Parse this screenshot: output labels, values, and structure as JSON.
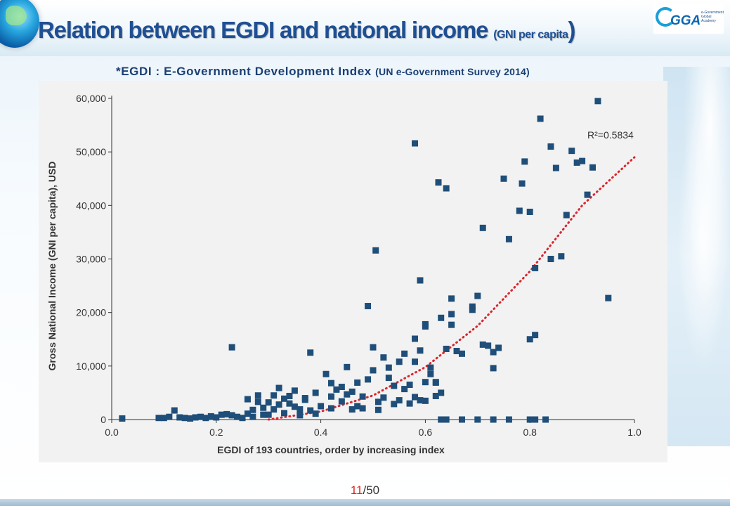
{
  "header": {
    "title_main": "Relation between EGDI and national income ",
    "title_paren_open": "(",
    "title_small": "GNI per capita",
    "title_paren_close": ")",
    "logo_text": "GGA",
    "logo_sub": "e-Government Global Academy"
  },
  "subtitle": {
    "main": "*EGDI : E-Government Development Index ",
    "source": "(UN e-Government Survey 2014)"
  },
  "page": {
    "current": "11",
    "total": "/50"
  },
  "colors": {
    "marker": "#1f4e79",
    "trend": "#d9262e",
    "title": "#1f4f93"
  },
  "chart_data": {
    "type": "scatter",
    "xlabel": "EGDI of 193 countries, order by increasing index",
    "ylabel": "Gross National Income (GNI per capita), USD",
    "xlim": [
      0.0,
      1.0
    ],
    "ylim": [
      0,
      60000
    ],
    "xticks": [
      0.0,
      0.2,
      0.4,
      0.6,
      0.8,
      1.0
    ],
    "xtick_labels": [
      "0.0",
      "0.2",
      "0.4",
      "0.6",
      "0.8",
      "1.0"
    ],
    "yticks": [
      0,
      10000,
      20000,
      30000,
      40000,
      50000,
      60000
    ],
    "ytick_labels": [
      "0",
      "10,000",
      "20,000",
      "30,000",
      "40,000",
      "50,000",
      "60,000"
    ],
    "grid": false,
    "trendline": {
      "type": "polynomial",
      "style": "dotted",
      "label": "R²=0.5834",
      "points": [
        [
          0.3,
          0
        ],
        [
          0.4,
          1500
        ],
        [
          0.5,
          4500
        ],
        [
          0.6,
          9800
        ],
        [
          0.7,
          17500
        ],
        [
          0.8,
          27700
        ],
        [
          0.9,
          40000
        ],
        [
          1.0,
          49000
        ]
      ]
    },
    "points": [
      [
        0.02,
        200
      ],
      [
        0.09,
        300
      ],
      [
        0.1,
        300
      ],
      [
        0.11,
        500
      ],
      [
        0.12,
        1700
      ],
      [
        0.13,
        400
      ],
      [
        0.14,
        300
      ],
      [
        0.15,
        200
      ],
      [
        0.16,
        400
      ],
      [
        0.17,
        500
      ],
      [
        0.18,
        300
      ],
      [
        0.19,
        600
      ],
      [
        0.2,
        400
      ],
      [
        0.21,
        900
      ],
      [
        0.22,
        1000
      ],
      [
        0.23,
        800
      ],
      [
        0.24,
        500
      ],
      [
        0.25,
        300
      ],
      [
        0.26,
        1100
      ],
      [
        0.27,
        1800
      ],
      [
        0.28,
        3300
      ],
      [
        0.29,
        2200
      ],
      [
        0.3,
        900
      ],
      [
        0.31,
        1900
      ],
      [
        0.32,
        2800
      ],
      [
        0.33,
        1200
      ],
      [
        0.34,
        3000
      ],
      [
        0.35,
        2400
      ],
      [
        0.36,
        1900
      ],
      [
        0.37,
        3700
      ],
      [
        0.38,
        1700
      ],
      [
        0.39,
        5000
      ],
      [
        0.4,
        2500
      ],
      [
        0.27,
        500
      ],
      [
        0.29,
        900
      ],
      [
        0.31,
        4500
      ],
      [
        0.33,
        3900
      ],
      [
        0.35,
        5400
      ],
      [
        0.37,
        4000
      ],
      [
        0.39,
        1100
      ],
      [
        0.23,
        13500
      ],
      [
        0.26,
        3800
      ],
      [
        0.28,
        4500
      ],
      [
        0.3,
        3200
      ],
      [
        0.32,
        5900
      ],
      [
        0.34,
        4400
      ],
      [
        0.36,
        800
      ],
      [
        0.38,
        12500
      ],
      [
        0.41,
        8500
      ],
      [
        0.42,
        6800
      ],
      [
        0.43,
        5600
      ],
      [
        0.44,
        3400
      ],
      [
        0.45,
        9800
      ],
      [
        0.46,
        5200
      ],
      [
        0.47,
        2500
      ],
      [
        0.48,
        4300
      ],
      [
        0.49,
        7500
      ],
      [
        0.5,
        13500
      ],
      [
        0.51,
        3300
      ],
      [
        0.52,
        11600
      ],
      [
        0.53,
        9700
      ],
      [
        0.54,
        6300
      ],
      [
        0.55,
        10800
      ],
      [
        0.56,
        12300
      ],
      [
        0.57,
        6500
      ],
      [
        0.58,
        4200
      ],
      [
        0.59,
        12900
      ],
      [
        0.6,
        17800
      ],
      [
        0.61,
        8500
      ],
      [
        0.62,
        6900
      ],
      [
        0.63,
        5000
      ],
      [
        0.64,
        13200
      ],
      [
        0.42,
        4300
      ],
      [
        0.44,
        6100
      ],
      [
        0.46,
        1900
      ],
      [
        0.48,
        2100
      ],
      [
        0.5,
        9200
      ],
      [
        0.52,
        4100
      ],
      [
        0.54,
        2900
      ],
      [
        0.56,
        5700
      ],
      [
        0.58,
        10800
      ],
      [
        0.6,
        7000
      ],
      [
        0.62,
        4400
      ],
      [
        0.42,
        2100
      ],
      [
        0.45,
        4700
      ],
      [
        0.47,
        6900
      ],
      [
        0.49,
        21200
      ],
      [
        0.505,
        31600
      ],
      [
        0.51,
        1800
      ],
      [
        0.53,
        7800
      ],
      [
        0.55,
        3600
      ],
      [
        0.57,
        3000
      ],
      [
        0.59,
        3600
      ],
      [
        0.6,
        3500
      ],
      [
        0.61,
        9700
      ],
      [
        0.62,
        7000
      ],
      [
        0.63,
        19000
      ],
      [
        0.65,
        17700
      ],
      [
        0.66,
        12800
      ],
      [
        0.67,
        12300
      ],
      [
        0.58,
        51600
      ],
      [
        0.59,
        26000
      ],
      [
        0.625,
        44300
      ],
      [
        0.64,
        43200
      ],
      [
        0.65,
        22600
      ],
      [
        0.69,
        21100
      ],
      [
        0.7,
        23100
      ],
      [
        0.71,
        35800
      ],
      [
        0.75,
        45000
      ],
      [
        0.76,
        33700
      ],
      [
        0.78,
        39000
      ],
      [
        0.785,
        44100
      ],
      [
        0.79,
        48200
      ],
      [
        0.8,
        38800
      ],
      [
        0.82,
        56200
      ],
      [
        0.84,
        51000
      ],
      [
        0.85,
        47000
      ],
      [
        0.87,
        38200
      ],
      [
        0.88,
        50200
      ],
      [
        0.89,
        48000
      ],
      [
        0.9,
        48300
      ],
      [
        0.91,
        42000
      ],
      [
        0.92,
        47100
      ],
      [
        0.93,
        59500
      ],
      [
        0.95,
        22700
      ],
      [
        0.81,
        28300
      ],
      [
        0.84,
        30000
      ],
      [
        0.86,
        30500
      ],
      [
        0.71,
        14000
      ],
      [
        0.72,
        13800
      ],
      [
        0.73,
        12600
      ],
      [
        0.74,
        13400
      ],
      [
        0.73,
        9600
      ],
      [
        0.8,
        15000
      ],
      [
        0.81,
        15800
      ],
      [
        0.58,
        15100
      ],
      [
        0.6,
        17400
      ],
      [
        0.65,
        19700
      ],
      [
        0.69,
        20500
      ],
      [
        0.63,
        0
      ],
      [
        0.67,
        0
      ],
      [
        0.7,
        0
      ],
      [
        0.73,
        0
      ],
      [
        0.76,
        0
      ],
      [
        0.8,
        0
      ],
      [
        0.81,
        0
      ],
      [
        0.83,
        0
      ],
      [
        0.64,
        0
      ]
    ]
  }
}
